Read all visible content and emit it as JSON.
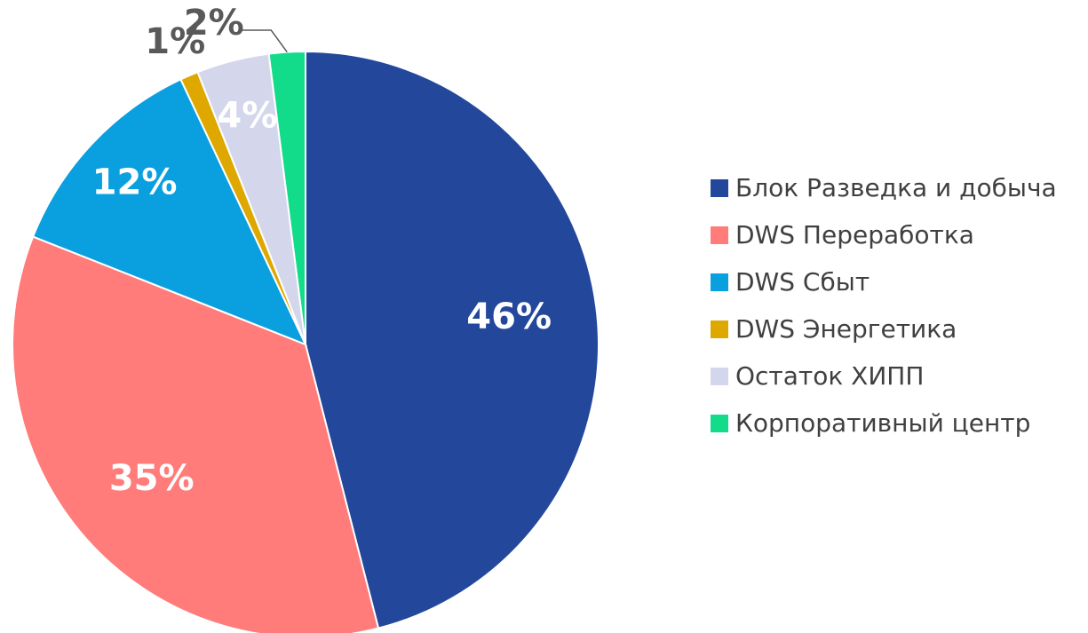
{
  "chart_data": {
    "type": "pie",
    "categories": [
      "Блок Разведка и добыча",
      "DWS Переработка",
      "DWS Сбыт",
      "DWS Энергетика",
      "Остаток ХИПП",
      "Корпоративный центр"
    ],
    "values": [
      46,
      35,
      12,
      1,
      4,
      2
    ],
    "value_labels": [
      "46%",
      "35%",
      "12%",
      "1%",
      "4%",
      "2%"
    ],
    "colors": [
      "#23489b",
      "#ff7c7b",
      "#0a9fdf",
      "#dea800",
      "#d4d7ec",
      "#12dc8a"
    ],
    "legend": "right"
  }
}
